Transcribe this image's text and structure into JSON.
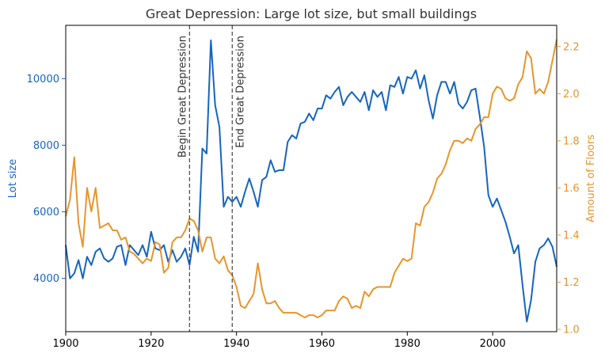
{
  "chart_data": {
    "type": "line",
    "title": "Great Depression: Large lot size, but small buildings",
    "xlabel": "",
    "ylabel_left": "Lot size",
    "ylabel_right": "Amount of Floors",
    "xlim": [
      1900,
      2015
    ],
    "ylim_left": [
      2400,
      11600
    ],
    "ylim_right": [
      0.99,
      2.29
    ],
    "x_ticks": [
      1900,
      1920,
      1940,
      1960,
      1980,
      2000
    ],
    "y_left_ticks": [
      4000,
      6000,
      8000,
      10000
    ],
    "y_right_ticks": [
      1.0,
      1.2,
      1.4,
      1.6,
      1.8,
      2.0,
      2.2
    ],
    "grid": false,
    "colors": {
      "lot_size": "#1565c0",
      "floors": "#e8952c",
      "vline": "#444444"
    },
    "annotations": [
      {
        "x": 1929,
        "text": "Begin Great Depression"
      },
      {
        "x": 1939,
        "text": "End Great Depression"
      }
    ],
    "series": [
      {
        "axis": "left",
        "color": "#1565c0",
        "x": [
          1900,
          1901,
          1902,
          1903,
          1904,
          1905,
          1906,
          1907,
          1908,
          1909,
          1910,
          1911,
          1912,
          1913,
          1914,
          1915,
          1916,
          1917,
          1918,
          1919,
          1920,
          1921,
          1922,
          1923,
          1924,
          1925,
          1926,
          1927,
          1928,
          1929,
          1930,
          1931,
          1932,
          1933,
          1934,
          1935,
          1936,
          1937,
          1938,
          1939,
          1940,
          1941,
          1942,
          1943,
          1944,
          1945,
          1946,
          1947,
          1948,
          1949,
          1950,
          1951,
          1952,
          1953,
          1954,
          1955,
          1956,
          1957,
          1958,
          1959,
          1960,
          1961,
          1962,
          1963,
          1964,
          1965,
          1966,
          1967,
          1968,
          1969,
          1970,
          1971,
          1972,
          1973,
          1974,
          1975,
          1976,
          1977,
          1978,
          1979,
          1980,
          1981,
          1982,
          1983,
          1984,
          1985,
          1986,
          1987,
          1988,
          1989,
          1990,
          1991,
          1992,
          1993,
          1994,
          1995,
          1996,
          1997,
          1998,
          1999,
          2000,
          2001,
          2002,
          2003,
          2004,
          2005,
          2006,
          2007,
          2008,
          2009,
          2010,
          2011,
          2012,
          2013,
          2014,
          2015
        ],
        "values": [
          5000,
          4000,
          4150,
          4550,
          4000,
          4650,
          4400,
          4800,
          4900,
          4600,
          4500,
          4600,
          4950,
          5000,
          4400,
          5000,
          4850,
          4700,
          5000,
          4650,
          5400,
          4900,
          4850,
          5000,
          4500,
          4850,
          4500,
          4650,
          4900,
          4400,
          5250,
          4800,
          7900,
          7750,
          11150,
          9200,
          8550,
          6150,
          6450,
          6300,
          6450,
          6150,
          6600,
          7000,
          6600,
          6150,
          6950,
          7050,
          7550,
          7200,
          7250,
          7250,
          8100,
          8300,
          8200,
          8650,
          8700,
          8950,
          8750,
          9100,
          9100,
          9500,
          9400,
          9600,
          9750,
          9200,
          9450,
          9600,
          9450,
          9300,
          9600,
          9050,
          9650,
          9450,
          9600,
          9050,
          9800,
          9750,
          10050,
          9550,
          10050,
          10000,
          10250,
          9700,
          10100,
          9350,
          8800,
          9500,
          9900,
          9900,
          9550,
          9900,
          9250,
          9100,
          9300,
          9650,
          9700,
          8850,
          7950,
          6500,
          6150,
          6400,
          6050,
          5700,
          5250,
          4750,
          5000,
          3800,
          2700,
          3350,
          4500,
          4900,
          5000,
          5200,
          4950,
          4350
        ]
      },
      {
        "axis": "right",
        "color": "#e8952c",
        "x": [
          1900,
          1901,
          1902,
          1903,
          1904,
          1905,
          1906,
          1907,
          1908,
          1909,
          1910,
          1911,
          1912,
          1913,
          1914,
          1915,
          1916,
          1917,
          1918,
          1919,
          1920,
          1921,
          1922,
          1923,
          1924,
          1925,
          1926,
          1927,
          1928,
          1929,
          1930,
          1931,
          1932,
          1933,
          1934,
          1935,
          1936,
          1937,
          1938,
          1939,
          1940,
          1941,
          1942,
          1943,
          1944,
          1945,
          1946,
          1947,
          1948,
          1949,
          1950,
          1951,
          1952,
          1953,
          1954,
          1955,
          1956,
          1957,
          1958,
          1959,
          1960,
          1961,
          1962,
          1963,
          1964,
          1965,
          1966,
          1967,
          1968,
          1969,
          1970,
          1971,
          1972,
          1973,
          1974,
          1975,
          1976,
          1977,
          1978,
          1979,
          1980,
          1981,
          1982,
          1983,
          1984,
          1985,
          1986,
          1987,
          1988,
          1989,
          1990,
          1991,
          1992,
          1993,
          1994,
          1995,
          1996,
          1997,
          1998,
          1999,
          2000,
          2001,
          2002,
          2003,
          2004,
          2005,
          2006,
          2007,
          2008,
          2009,
          2010,
          2011,
          2012,
          2013,
          2014,
          2015
        ],
        "values": [
          1.48,
          1.55,
          1.73,
          1.45,
          1.35,
          1.6,
          1.5,
          1.6,
          1.43,
          1.44,
          1.45,
          1.42,
          1.42,
          1.38,
          1.39,
          1.33,
          1.32,
          1.3,
          1.28,
          1.3,
          1.29,
          1.37,
          1.36,
          1.24,
          1.26,
          1.37,
          1.39,
          1.39,
          1.42,
          1.47,
          1.46,
          1.42,
          1.33,
          1.39,
          1.39,
          1.3,
          1.28,
          1.31,
          1.25,
          1.23,
          1.18,
          1.1,
          1.09,
          1.12,
          1.15,
          1.28,
          1.17,
          1.11,
          1.11,
          1.12,
          1.09,
          1.07,
          1.07,
          1.07,
          1.07,
          1.06,
          1.05,
          1.06,
          1.06,
          1.05,
          1.06,
          1.08,
          1.08,
          1.08,
          1.12,
          1.14,
          1.13,
          1.09,
          1.1,
          1.09,
          1.16,
          1.14,
          1.17,
          1.18,
          1.18,
          1.18,
          1.18,
          1.24,
          1.27,
          1.3,
          1.29,
          1.3,
          1.45,
          1.44,
          1.52,
          1.54,
          1.58,
          1.64,
          1.66,
          1.7,
          1.76,
          1.8,
          1.8,
          1.79,
          1.81,
          1.8,
          1.85,
          1.87,
          1.9,
          1.9,
          2.0,
          2.03,
          2.02,
          1.98,
          1.97,
          1.98,
          2.04,
          2.07,
          2.18,
          2.15,
          2.0,
          2.02,
          2.0,
          2.05,
          2.14,
          2.23
        ]
      }
    ]
  }
}
